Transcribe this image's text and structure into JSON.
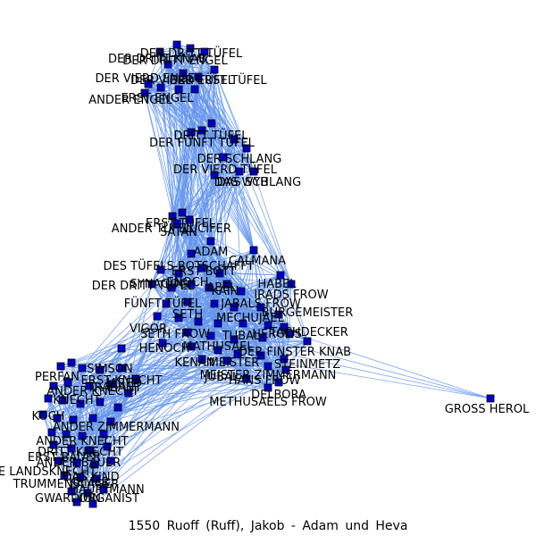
{
  "caption": "1550 Ruoff (Ruff), Jakob - Adam und Heva",
  "colors": {
    "edge": "#6495ed",
    "node": "#0000cd",
    "node_stroke": "#000000"
  },
  "labels": [
    "DER DRITT TÜFEL",
    "DER DRITT KNAB",
    "DER DRITT ENGEL",
    "DER VIERD ENGEL",
    "DER VIERD TÜFEL",
    "DER ERST TÜFEL",
    "ERST ENGEL",
    "ANDER ENGEL",
    "DRITT TÜFEL",
    "DER FÜNFT TÜFEL",
    "DER SCHLANG",
    "DER VIERD TÜFEL",
    "DAS WYB",
    "DAS SCHLANG",
    "ERST TÜFEL",
    "ANDER TÜFEL",
    "LUCIFER",
    "SATAN",
    "ADAM",
    "CALMANA",
    "DES TÜFELS BOTSCHAFFT",
    "ERST BOTT",
    "ENOCH",
    "DER DRITT TÜFEL",
    "SYNAGOG",
    "ABEL",
    "KAIN",
    "IRADS FROW",
    "HABEL",
    "FÜNFT TÜFEL",
    "JABALS FROW",
    "SETH",
    "MECHUJAEL",
    "BURGEMEISTER",
    "VIGOR",
    "SETH FROW",
    "TUBAL",
    "HERODS",
    "TACHDECKER",
    "HENOCH",
    "MATHUSAEL",
    "DER FINSTER KNAB",
    "KENAN",
    "MEISTER",
    "STEINMETZ",
    "JUBAL",
    "MEISTER ZIMMERMANN",
    "HANS FROW",
    "DELBORA",
    "METHUSAELS FROW",
    "GROSS HEROL",
    "JARED",
    "SIMSON",
    "PERFAN",
    "ERST KNECHT",
    "TRABANT",
    "ANDER KNECHT",
    "KNECHT",
    "ANDER ZIMMERMANN",
    "KOCH",
    "ANDER KNECHT",
    "DRITT KNECHT",
    "ERST BAUER",
    "ANDER BAUER",
    "DIE LANDSKNECHT",
    "DAS KIND",
    "KEMER",
    "HAUPTMANN",
    "TRUMMENSLAGER",
    "GWARDION",
    "ORGANIST"
  ]
}
